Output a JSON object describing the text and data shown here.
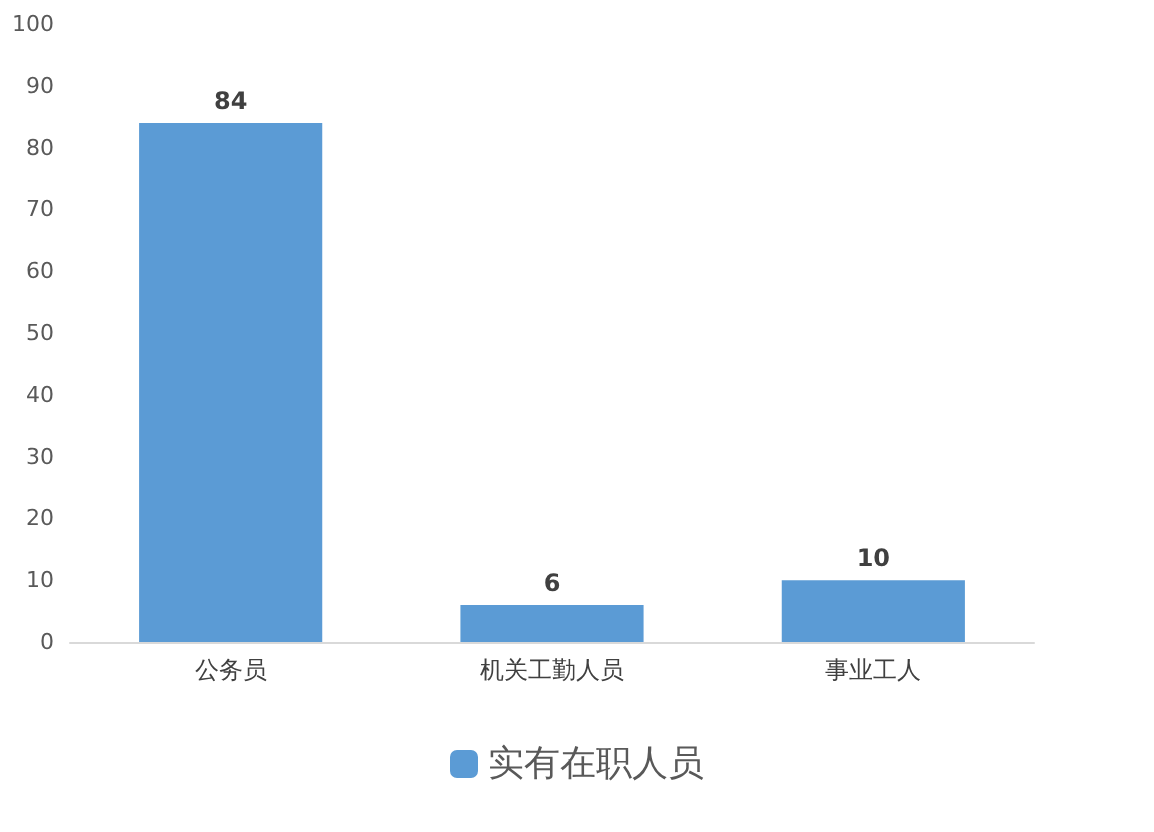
{
  "chart_data": {
    "type": "bar",
    "categories": [
      "公务员",
      "机关工勤人员",
      "事业工人"
    ],
    "series": [
      {
        "name": "实有在职人员",
        "color": "#5b9bd5",
        "values": [
          84,
          6,
          10
        ]
      }
    ],
    "ylim": [
      0,
      100
    ],
    "yticks": [
      0,
      10,
      20,
      30,
      40,
      50,
      60,
      70,
      80,
      90,
      100
    ],
    "grid": false,
    "legend": "bottom",
    "data_labels": true
  }
}
